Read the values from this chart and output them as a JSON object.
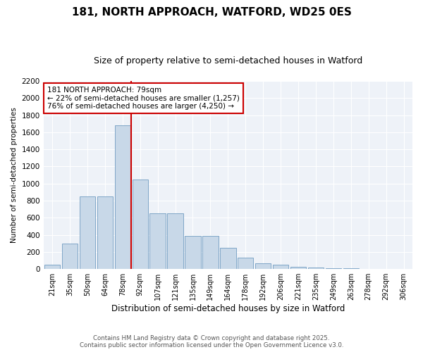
{
  "title1": "181, NORTH APPROACH, WATFORD, WD25 0ES",
  "title2": "Size of property relative to semi-detached houses in Watford",
  "xlabel": "Distribution of semi-detached houses by size in Watford",
  "ylabel": "Number of semi-detached properties",
  "categories": [
    "21sqm",
    "35sqm",
    "50sqm",
    "64sqm",
    "78sqm",
    "92sqm",
    "107sqm",
    "121sqm",
    "135sqm",
    "149sqm",
    "164sqm",
    "178sqm",
    "192sqm",
    "206sqm",
    "221sqm",
    "235sqm",
    "249sqm",
    "263sqm",
    "278sqm",
    "292sqm",
    "306sqm"
  ],
  "values": [
    50,
    300,
    850,
    850,
    1680,
    1050,
    650,
    650,
    390,
    390,
    250,
    130,
    70,
    50,
    30,
    20,
    10,
    8,
    5,
    3,
    2
  ],
  "bar_color": "#c8d8e8",
  "bar_edge_color": "#5b8db8",
  "highlight_index": 4,
  "highlight_line_color": "#cc0000",
  "property_label": "181 NORTH APPROACH: 79sqm",
  "smaller_text": "← 22% of semi-detached houses are smaller (1,257)",
  "larger_text": "76% of semi-detached houses are larger (4,250) →",
  "annotation_box_color": "#cc0000",
  "ylim": [
    0,
    2200
  ],
  "yticks": [
    0,
    200,
    400,
    600,
    800,
    1000,
    1200,
    1400,
    1600,
    1800,
    2000,
    2200
  ],
  "background_color": "#eef2f8",
  "footer1": "Contains HM Land Registry data © Crown copyright and database right 2025.",
  "footer2": "Contains public sector information licensed under the Open Government Licence v3.0."
}
